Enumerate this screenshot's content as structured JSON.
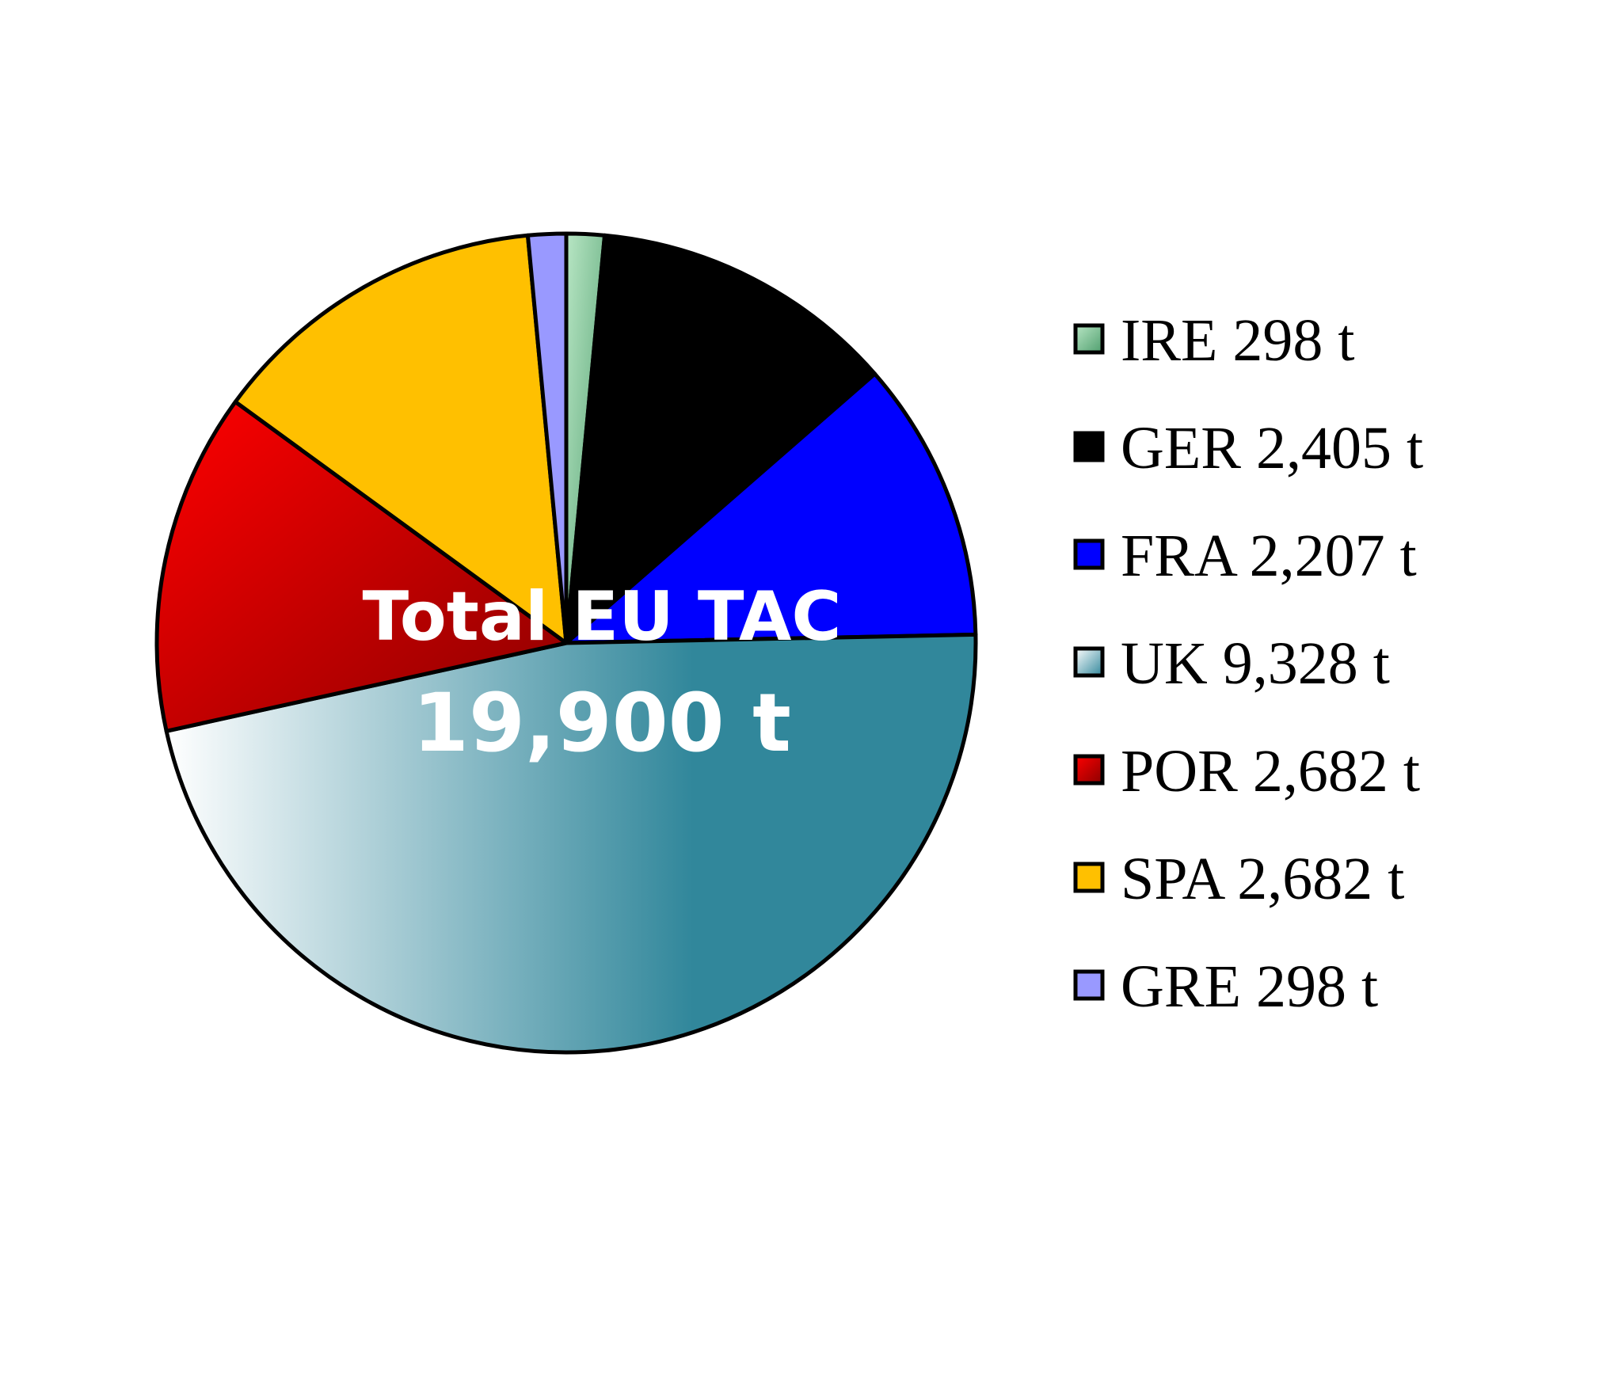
{
  "chart_data": {
    "type": "pie",
    "center_title": "Total EU  TAC",
    "center_total": "19,900 t",
    "legend_position": "right",
    "slices": [
      {
        "name": "IRE",
        "value": 298,
        "label": "IRE 298 t",
        "color": "#b8e6c4",
        "color_dark": "#4f9e6e"
      },
      {
        "name": "GER",
        "value": 2405,
        "label": "GER 2,405 t",
        "color": "#000000",
        "color_dark": "#000000"
      },
      {
        "name": "FRA",
        "value": 2207,
        "label": "FRA 2,207 t",
        "color": "#0000ff",
        "color_dark": "#0000ff"
      },
      {
        "name": "UK",
        "value": 9328,
        "label": "UK 9,328 t",
        "color": "#ffffff",
        "color_dark": "#31879b"
      },
      {
        "name": "POR",
        "value": 2682,
        "label": "POR 2,682 t",
        "color": "#ff0000",
        "color_dark": "#8b0000"
      },
      {
        "name": "SPA",
        "value": 2682,
        "label": "SPA 2,682 t",
        "color": "#ffc000",
        "color_dark": "#ffc000"
      },
      {
        "name": "GRE",
        "value": 298,
        "label": "GRE 298 t",
        "color": "#9999ff",
        "color_dark": "#9999ff"
      }
    ]
  }
}
